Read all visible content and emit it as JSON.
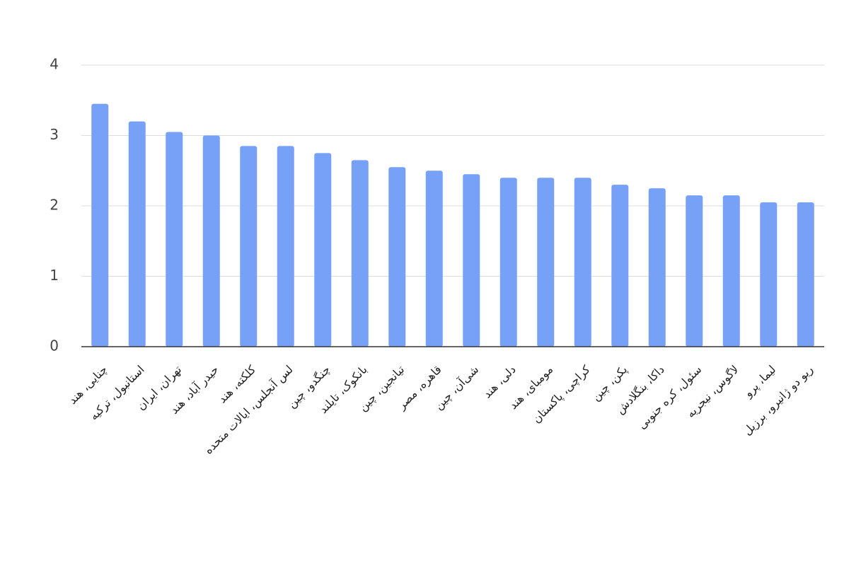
{
  "chart_data": {
    "type": "bar",
    "categories": [
      "چنایی، هند",
      "استانبول، ترکیه",
      "تهران، ایران",
      "حیدر آباد، هند",
      "کلکته، هند",
      "لس آنجلس، ایالات متحده",
      "چنگدو، چین",
      "بانکوک، تایلند",
      "تیانجین، چین",
      "قاهره، مصر",
      "شی‌آن، چین",
      "دلی، هند",
      "مومبای، هند",
      "کراچی، پاکستان",
      "پکن، چین",
      "داکا، بنگلادش",
      "سئول، کره جنوبی",
      "لاگوس، نیجریه",
      "لیما، پرو",
      "ریو دو ژانیرو، برزیل"
    ],
    "values": [
      3.45,
      3.2,
      3.05,
      3.0,
      2.85,
      2.85,
      2.75,
      2.65,
      2.55,
      2.5,
      2.45,
      2.4,
      2.4,
      2.4,
      2.3,
      2.25,
      2.15,
      2.15,
      2.05,
      2.05
    ],
    "color": "#77a1f7",
    "ylim": [
      0,
      4
    ],
    "yticks": [
      0,
      1,
      2,
      3,
      4
    ],
    "grid": true
  }
}
